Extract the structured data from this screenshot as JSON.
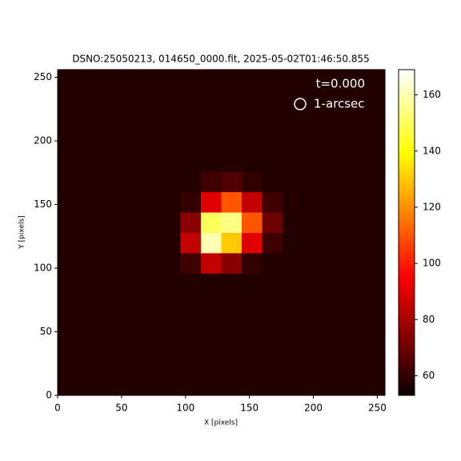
{
  "chart_data": {
    "type": "image",
    "title": "DSNO:25050213,  014650_0000.fit, 2025-05-02T01:46:50.855",
    "xlabel": "X [pixels]",
    "ylabel": "Y [pixels]",
    "xlim": [
      0,
      256
    ],
    "ylim": [
      0,
      256
    ],
    "xticks": [
      0,
      50,
      100,
      150,
      200,
      250
    ],
    "yticks": [
      0,
      50,
      100,
      150,
      200,
      250
    ],
    "cmap": "hot",
    "clim": [
      53,
      169
    ],
    "cticks": [
      60,
      80,
      100,
      120,
      140,
      160
    ],
    "annotations": [
      "t=0.000",
      "1-arcsec"
    ],
    "z": [
      [
        57,
        57,
        57,
        57,
        57,
        57,
        57,
        57,
        57,
        57,
        57,
        57,
        57,
        57,
        57,
        57
      ],
      [
        57,
        57,
        57,
        57,
        57,
        57,
        57,
        57,
        57,
        57,
        57,
        57,
        57,
        57,
        57,
        57
      ],
      [
        57,
        57,
        57,
        57,
        57,
        57,
        57,
        57,
        57,
        57,
        57,
        57,
        57,
        57,
        57,
        57
      ],
      [
        57,
        57,
        57,
        57,
        57,
        57,
        57,
        57,
        57,
        57,
        57,
        57,
        57,
        57,
        57,
        57
      ],
      [
        57,
        57,
        57,
        57,
        57,
        57,
        57,
        57,
        57,
        57,
        57,
        57,
        57,
        57,
        57,
        57
      ],
      [
        57,
        57,
        57,
        57,
        57,
        57,
        57,
        57,
        57,
        57,
        57,
        57,
        57,
        57,
        57,
        57
      ],
      [
        57,
        57,
        57,
        57,
        57,
        57,
        62,
        85,
        75,
        60,
        57,
        57,
        57,
        57,
        57,
        57
      ],
      [
        57,
        57,
        57,
        57,
        57,
        57,
        85,
        160,
        130,
        90,
        62,
        57,
        57,
        57,
        57,
        57
      ],
      [
        57,
        57,
        57,
        57,
        57,
        57,
        75,
        150,
        155,
        110,
        70,
        57,
        57,
        57,
        57,
        57
      ],
      [
        57,
        57,
        57,
        57,
        57,
        57,
        60,
        90,
        110,
        85,
        62,
        57,
        57,
        57,
        57,
        57
      ],
      [
        57,
        57,
        57,
        57,
        57,
        57,
        57,
        62,
        65,
        60,
        57,
        57,
        57,
        57,
        57,
        57
      ],
      [
        57,
        57,
        57,
        57,
        57,
        57,
        57,
        57,
        57,
        57,
        57,
        57,
        57,
        57,
        57,
        57
      ],
      [
        57,
        57,
        57,
        57,
        57,
        57,
        57,
        57,
        57,
        57,
        57,
        57,
        57,
        57,
        57,
        57
      ],
      [
        57,
        57,
        57,
        57,
        57,
        57,
        57,
        57,
        57,
        57,
        57,
        57,
        57,
        57,
        57,
        57
      ],
      [
        57,
        57,
        57,
        57,
        57,
        57,
        57,
        57,
        57,
        57,
        57,
        57,
        57,
        57,
        57,
        57
      ],
      [
        57,
        57,
        57,
        57,
        57,
        57,
        57,
        57,
        57,
        57,
        57,
        57,
        57,
        57,
        57,
        57
      ]
    ]
  }
}
